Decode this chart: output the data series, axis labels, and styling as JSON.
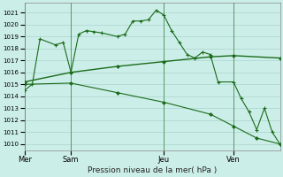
{
  "bg_color": "#cceee8",
  "grid_color": "#aad4ce",
  "line_color": "#1a6b1a",
  "xlabel": "Pression niveau de la mer( hPa )",
  "ylim": [
    1009.5,
    1021.8
  ],
  "yticks": [
    1010,
    1011,
    1012,
    1013,
    1014,
    1015,
    1016,
    1017,
    1018,
    1019,
    1020,
    1021
  ],
  "day_labels": [
    "Mer",
    "Sam",
    "Jeu",
    "Ven"
  ],
  "day_positions": [
    0,
    6,
    18,
    27
  ],
  "xlim": [
    0,
    33
  ],
  "line1_x": [
    0,
    1,
    2,
    4,
    5,
    6,
    7,
    8,
    9,
    10,
    12,
    13,
    14,
    15,
    16,
    17,
    18,
    19,
    20,
    21,
    22,
    23,
    24,
    25,
    27,
    28,
    29,
    30,
    31,
    32,
    33
  ],
  "line1_y": [
    1014.5,
    1015.0,
    1018.8,
    1018.3,
    1018.5,
    1016.0,
    1019.2,
    1019.5,
    1019.4,
    1019.3,
    1019.0,
    1019.2,
    1020.3,
    1020.3,
    1020.4,
    1021.2,
    1020.8,
    1019.5,
    1018.5,
    1017.5,
    1017.2,
    1017.7,
    1017.5,
    1015.2,
    1015.2,
    1013.8,
    1012.7,
    1011.2,
    1013.0,
    1011.0,
    1010.0
  ],
  "line2_x": [
    0,
    6,
    12,
    18,
    24,
    27,
    33
  ],
  "line2_y": [
    1015.2,
    1016.0,
    1016.5,
    1016.9,
    1017.3,
    1017.4,
    1017.2
  ],
  "line3_x": [
    0,
    6,
    12,
    18,
    24,
    27,
    30,
    33
  ],
  "line3_y": [
    1015.0,
    1015.1,
    1014.3,
    1013.5,
    1012.5,
    1011.5,
    1010.5,
    1010.0
  ]
}
